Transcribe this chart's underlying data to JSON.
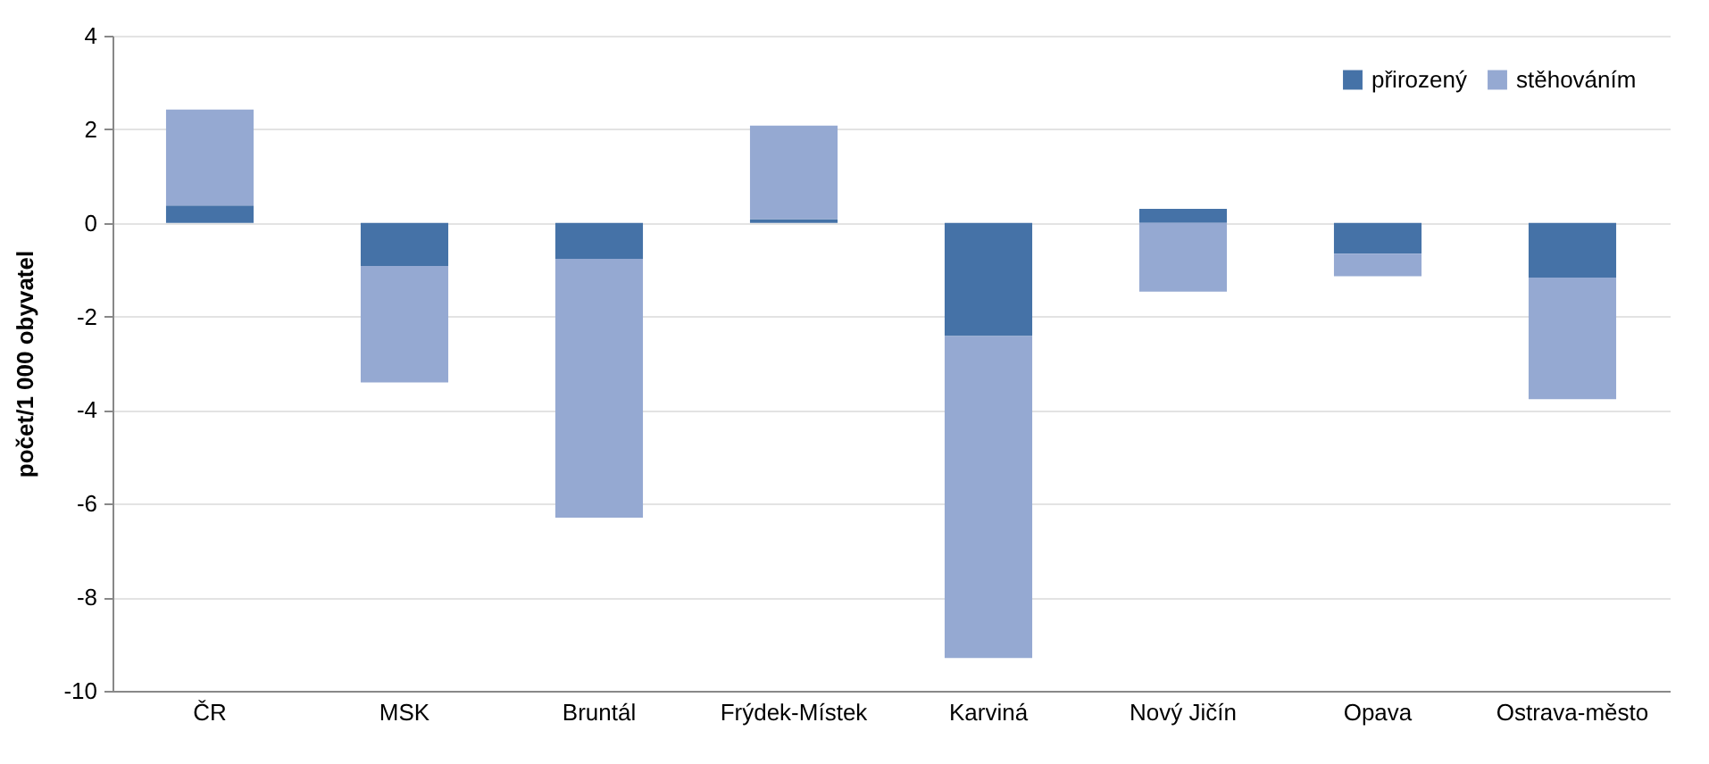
{
  "chart_data": {
    "type": "bar",
    "stacked": true,
    "ylabel": "počet/1 000 obyvatel",
    "categories": [
      "ČR",
      "MSK",
      "Bruntál",
      "Frýdek-Místek",
      "Karviná",
      "Nový Jičín",
      "Opava",
      "Ostrava-město"
    ],
    "series": [
      {
        "name": "přirozený",
        "color": "#4572a7",
        "values": [
          0.37,
          -0.92,
          -0.77,
          0.08,
          -2.42,
          0.3,
          -0.66,
          -1.17
        ]
      },
      {
        "name": "stěhováním",
        "color": "#95a9d2",
        "values": [
          2.05,
          -2.49,
          -5.53,
          2.0,
          -6.88,
          -1.47,
          -0.48,
          -2.6
        ]
      }
    ],
    "ylim": [
      -10,
      4
    ],
    "yticks": [
      -10,
      -8,
      -6,
      -4,
      -2,
      0,
      2,
      4
    ],
    "grid": "y",
    "legend": "top right"
  }
}
